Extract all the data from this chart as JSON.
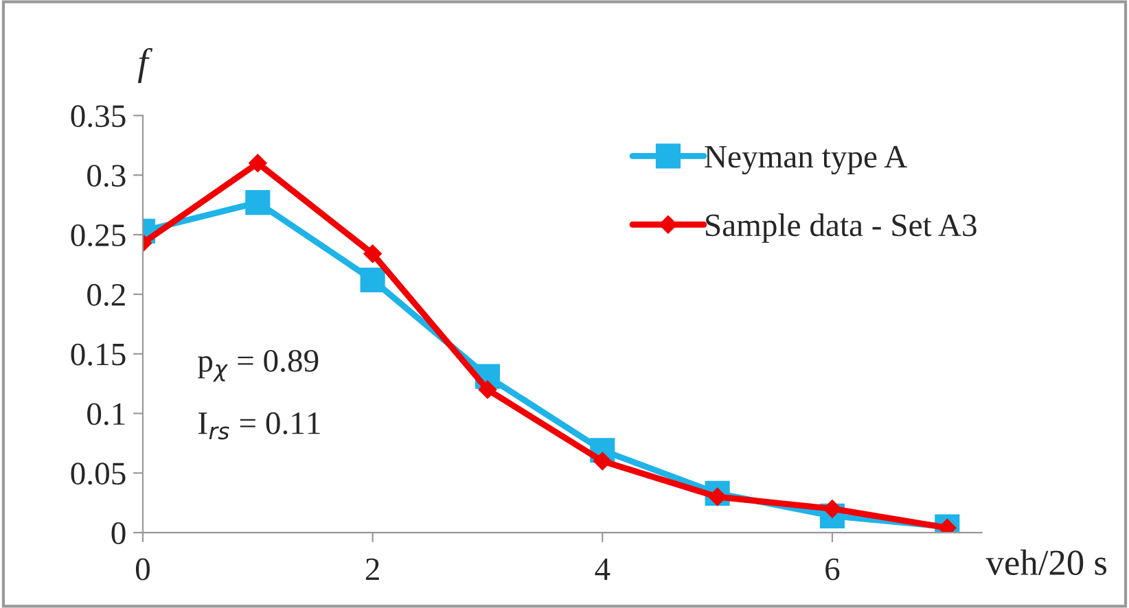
{
  "chart_data": {
    "type": "line",
    "xlabel": "veh/20 s",
    "ylabel": "f",
    "x": [
      0,
      1,
      2,
      3,
      4,
      5,
      6,
      7
    ],
    "series": [
      {
        "name": "Neyman type A",
        "color": "#1fb3e8",
        "marker": "square",
        "values": [
          0.253,
          0.277,
          0.212,
          0.131,
          0.069,
          0.033,
          0.014,
          0.005
        ]
      },
      {
        "name": "Sample data - Set A3",
        "color": "#f00000",
        "marker": "diamond",
        "values": [
          0.243,
          0.31,
          0.234,
          0.12,
          0.06,
          0.03,
          0.02,
          0.004
        ]
      }
    ],
    "xlim": [
      0,
      7.3
    ],
    "xticks": [
      0,
      2,
      4,
      6
    ],
    "ylim": [
      0,
      0.35
    ],
    "yticks": [
      0,
      0.05,
      0.1,
      0.15,
      0.2,
      0.25,
      0.3,
      0.35
    ],
    "grid": false,
    "legend": "top right",
    "line_style": "solid",
    "annotations": [
      "p$_{χ}$ = 0.89",
      "I$_{rs}$ = 0.11"
    ]
  }
}
